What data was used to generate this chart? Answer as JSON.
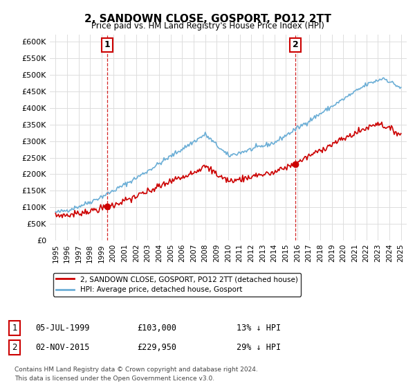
{
  "title": "2, SANDOWN CLOSE, GOSPORT, PO12 2TT",
  "subtitle": "Price paid vs. HM Land Registry's House Price Index (HPI)",
  "ylim": [
    0,
    620000
  ],
  "yticks": [
    0,
    50000,
    100000,
    150000,
    200000,
    250000,
    300000,
    350000,
    400000,
    450000,
    500000,
    550000,
    600000
  ],
  "ytick_labels": [
    "£0",
    "£50K",
    "£100K",
    "£150K",
    "£200K",
    "£250K",
    "£300K",
    "£350K",
    "£400K",
    "£450K",
    "£500K",
    "£550K",
    "£600K"
  ],
  "hpi_color": "#6baed6",
  "price_color": "#cc0000",
  "dashed_color": "#cc0000",
  "legend_label_price": "2, SANDOWN CLOSE, GOSPORT, PO12 2TT (detached house)",
  "legend_label_hpi": "HPI: Average price, detached house, Gosport",
  "sale1_date_num": 1999.5,
  "sale1_price": 103000,
  "sale1_label": "1",
  "sale2_date_num": 2015.83,
  "sale2_price": 229950,
  "sale2_label": "2",
  "footer_line1": "Contains HM Land Registry data © Crown copyright and database right 2024.",
  "footer_line2": "This data is licensed under the Open Government Licence v3.0.",
  "table_row1": [
    "1",
    "05-JUL-1999",
    "£103,000",
    "13% ↓ HPI"
  ],
  "table_row2": [
    "2",
    "02-NOV-2015",
    "£229,950",
    "29% ↓ HPI"
  ],
  "background_color": "#ffffff",
  "grid_color": "#dddddd"
}
